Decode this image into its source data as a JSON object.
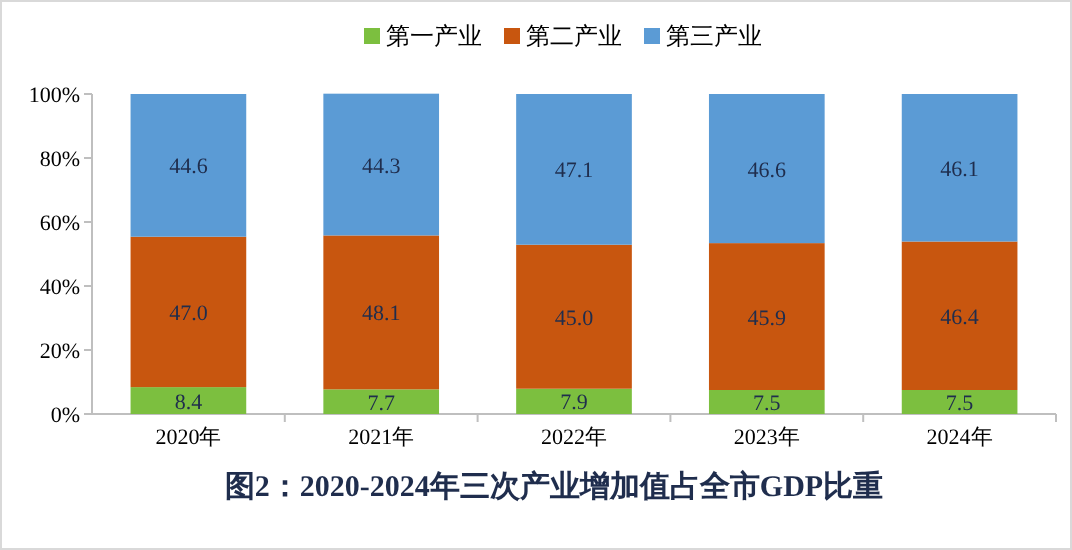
{
  "chart_data": {
    "type": "bar",
    "stacked": true,
    "title": "图2：2020-2024年三次产业增加值占全市GDP比重",
    "categories": [
      "2020年",
      "2021年",
      "2022年",
      "2023年",
      "2024年"
    ],
    "series": [
      {
        "name": "第一产业",
        "color": "#7cbf3f",
        "values": [
          8.4,
          7.7,
          7.9,
          7.5,
          7.5
        ],
        "value_labels": [
          "8.4",
          "7.7",
          "7.9",
          "7.5",
          "7.5"
        ]
      },
      {
        "name": "第二产业",
        "color": "#c8560f",
        "values": [
          47.0,
          48.1,
          45.0,
          45.9,
          46.4
        ],
        "value_labels": [
          "47.0",
          "48.1",
          "45.0",
          "45.9",
          "46.4"
        ]
      },
      {
        "name": "第三产业",
        "color": "#5b9bd5",
        "values": [
          44.6,
          44.3,
          47.1,
          46.6,
          46.1
        ],
        "value_labels": [
          "44.6",
          "44.3",
          "47.1",
          "46.6",
          "46.1"
        ]
      }
    ],
    "ylim": [
      0,
      100
    ],
    "yticks": [
      {
        "value": 0,
        "label": "0%"
      },
      {
        "value": 20,
        "label": "20%"
      },
      {
        "value": 40,
        "label": "40%"
      },
      {
        "value": 60,
        "label": "60%"
      },
      {
        "value": 80,
        "label": "80%"
      },
      {
        "value": 100,
        "label": "100%"
      }
    ],
    "legend": "top"
  }
}
